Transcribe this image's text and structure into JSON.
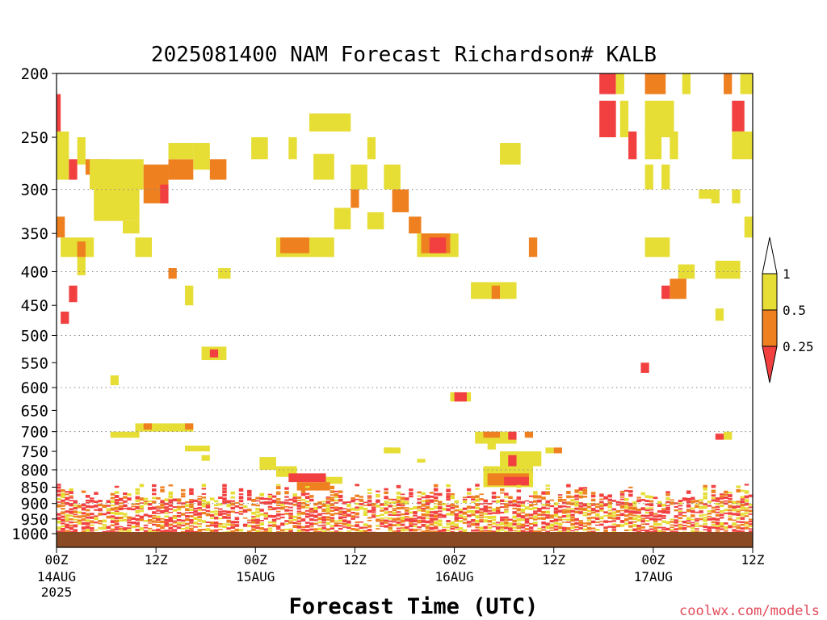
{
  "chart_data": {
    "type": "heatmap",
    "title": "2025081400 NAM Forecast Richardson# KALB",
    "xlabel": "Forecast Time (UTC)",
    "ylabel": "",
    "credit": "coolwx.com/models",
    "y_axis": {
      "scale": "log-pressure",
      "units": "hPa",
      "range": [
        1000,
        200
      ],
      "inverted": true,
      "ticks": [
        200,
        250,
        300,
        350,
        400,
        450,
        500,
        550,
        600,
        650,
        700,
        750,
        800,
        850,
        900,
        950,
        1000
      ],
      "gridlines": [
        300,
        400,
        500,
        600,
        700,
        800,
        900
      ]
    },
    "x_axis": {
      "range_hours": [
        0,
        84
      ],
      "ticks": [
        {
          "hour": 0,
          "label": "00Z",
          "date": "14AUG",
          "year": "2025"
        },
        {
          "hour": 12,
          "label": "12Z"
        },
        {
          "hour": 24,
          "label": "00Z",
          "date": "15AUG"
        },
        {
          "hour": 36,
          "label": "12Z"
        },
        {
          "hour": 48,
          "label": "00Z",
          "date": "16AUG"
        },
        {
          "hour": 60,
          "label": "12Z"
        },
        {
          "hour": 72,
          "label": "00Z",
          "date": "17AUG"
        },
        {
          "hour": 84,
          "label": "12Z"
        }
      ]
    },
    "ground_color": "#8a4a24",
    "colorbar": {
      "labels": [
        "1",
        "0.5",
        "0.25"
      ],
      "levels": [
        {
          "range": "0.5–1",
          "color": "#e6dd35"
        },
        {
          "range": "0.25–0.5",
          "color": "#ee8020"
        },
        {
          "range": "<0.25",
          "color": "#f24040"
        }
      ]
    },
    "cells": [
      {
        "t0": 0,
        "t1": 0.5,
        "p0": 215,
        "p1": 245,
        "c": "r"
      },
      {
        "t0": 0,
        "t1": 1.5,
        "p0": 245,
        "p1": 290,
        "c": "y"
      },
      {
        "t0": 1.5,
        "t1": 2.5,
        "p0": 270,
        "p1": 290,
        "c": "r"
      },
      {
        "t0": 2.5,
        "t1": 3.5,
        "p0": 250,
        "p1": 275,
        "c": "y"
      },
      {
        "t0": 3.5,
        "t1": 6.5,
        "p0": 270,
        "p1": 285,
        "c": "o"
      },
      {
        "t0": 4,
        "t1": 10.5,
        "p0": 270,
        "p1": 300,
        "c": "y"
      },
      {
        "t0": 4.5,
        "t1": 10,
        "p0": 300,
        "p1": 335,
        "c": "y"
      },
      {
        "t0": 8,
        "t1": 10,
        "p0": 335,
        "p1": 350,
        "c": "y"
      },
      {
        "t0": 10.5,
        "t1": 13.5,
        "p0": 275,
        "p1": 315,
        "c": "o"
      },
      {
        "t0": 12.5,
        "t1": 13.5,
        "p0": 295,
        "p1": 315,
        "c": "r"
      },
      {
        "t0": 13.5,
        "t1": 16.5,
        "p0": 270,
        "p1": 290,
        "c": "o"
      },
      {
        "t0": 13.5,
        "t1": 16.5,
        "p0": 255,
        "p1": 270,
        "c": "y"
      },
      {
        "t0": 16.5,
        "t1": 18.5,
        "p0": 255,
        "p1": 280,
        "c": "y"
      },
      {
        "t0": 18.5,
        "t1": 20.5,
        "p0": 270,
        "p1": 290,
        "c": "o"
      },
      {
        "t0": 0,
        "t1": 1,
        "p0": 330,
        "p1": 355,
        "c": "o"
      },
      {
        "t0": 0.5,
        "t1": 4.5,
        "p0": 355,
        "p1": 380,
        "c": "y"
      },
      {
        "t0": 2.5,
        "t1": 3.5,
        "p0": 360,
        "p1": 380,
        "c": "o"
      },
      {
        "t0": 2.5,
        "t1": 3.5,
        "p0": 380,
        "p1": 405,
        "c": "y"
      },
      {
        "t0": 9.5,
        "t1": 11.5,
        "p0": 355,
        "p1": 380,
        "c": "y"
      },
      {
        "t0": 13.5,
        "t1": 14.5,
        "p0": 395,
        "p1": 410,
        "c": "o"
      },
      {
        "t0": 1.5,
        "t1": 2.5,
        "p0": 420,
        "p1": 445,
        "c": "r"
      },
      {
        "t0": 0.5,
        "t1": 1.5,
        "p0": 460,
        "p1": 480,
        "c": "r"
      },
      {
        "t0": 15.5,
        "t1": 16.5,
        "p0": 420,
        "p1": 450,
        "c": "y"
      },
      {
        "t0": 19.5,
        "t1": 21,
        "p0": 395,
        "p1": 410,
        "c": "y"
      },
      {
        "t0": 17.5,
        "t1": 20.5,
        "p0": 520,
        "p1": 545,
        "c": "y"
      },
      {
        "t0": 18.5,
        "t1": 19.5,
        "p0": 525,
        "p1": 540,
        "c": "r"
      },
      {
        "t0": 6.5,
        "t1": 7.5,
        "p0": 575,
        "p1": 595,
        "c": "y"
      },
      {
        "t0": 23.5,
        "t1": 25.5,
        "p0": 250,
        "p1": 270,
        "c": "y"
      },
      {
        "t0": 28,
        "t1": 29,
        "p0": 250,
        "p1": 270,
        "c": "y"
      },
      {
        "t0": 30.5,
        "t1": 35.5,
        "p0": 230,
        "p1": 245,
        "c": "y"
      },
      {
        "t0": 31,
        "t1": 33.5,
        "p0": 265,
        "p1": 290,
        "c": "y"
      },
      {
        "t0": 37.5,
        "t1": 38.5,
        "p0": 250,
        "p1": 270,
        "c": "y"
      },
      {
        "t0": 35.5,
        "t1": 37.5,
        "p0": 275,
        "p1": 300,
        "c": "y"
      },
      {
        "t0": 35.5,
        "t1": 36.5,
        "p0": 300,
        "p1": 320,
        "c": "o"
      },
      {
        "t0": 33.5,
        "t1": 35.5,
        "p0": 320,
        "p1": 345,
        "c": "y"
      },
      {
        "t0": 37.5,
        "t1": 39.5,
        "p0": 325,
        "p1": 345,
        "c": "y"
      },
      {
        "t0": 39.5,
        "t1": 41.5,
        "p0": 275,
        "p1": 300,
        "c": "y"
      },
      {
        "t0": 40.5,
        "t1": 42.5,
        "p0": 300,
        "p1": 325,
        "c": "o"
      },
      {
        "t0": 42.5,
        "t1": 44,
        "p0": 330,
        "p1": 350,
        "c": "o"
      },
      {
        "t0": 43.5,
        "t1": 48.5,
        "p0": 350,
        "p1": 380,
        "c": "y"
      },
      {
        "t0": 44,
        "t1": 47.5,
        "p0": 350,
        "p1": 375,
        "c": "o"
      },
      {
        "t0": 45,
        "t1": 47,
        "p0": 355,
        "p1": 375,
        "c": "r"
      },
      {
        "t0": 26.5,
        "t1": 33.5,
        "p0": 355,
        "p1": 380,
        "c": "y"
      },
      {
        "t0": 27,
        "t1": 30.5,
        "p0": 355,
        "p1": 375,
        "c": "o"
      },
      {
        "t0": 53.5,
        "t1": 56,
        "p0": 255,
        "p1": 275,
        "c": "y"
      },
      {
        "t0": 57,
        "t1": 58,
        "p0": 355,
        "p1": 380,
        "c": "o"
      },
      {
        "t0": 50,
        "t1": 55.5,
        "p0": 415,
        "p1": 440,
        "c": "y"
      },
      {
        "t0": 52.5,
        "t1": 53.5,
        "p0": 420,
        "p1": 440,
        "c": "o"
      },
      {
        "t0": 47.5,
        "t1": 50,
        "p0": 610,
        "p1": 630,
        "c": "y"
      },
      {
        "t0": 48,
        "t1": 49.5,
        "p0": 610,
        "p1": 630,
        "c": "r"
      },
      {
        "t0": 65.5,
        "t1": 67.5,
        "p0": 200,
        "p1": 215,
        "c": "r"
      },
      {
        "t0": 67.5,
        "t1": 68.5,
        "p0": 200,
        "p1": 215,
        "c": "y"
      },
      {
        "t0": 65.5,
        "t1": 67.5,
        "p0": 220,
        "p1": 250,
        "c": "r"
      },
      {
        "t0": 68,
        "t1": 69,
        "p0": 220,
        "p1": 250,
        "c": "y"
      },
      {
        "t0": 69,
        "t1": 70,
        "p0": 245,
        "p1": 270,
        "c": "r"
      },
      {
        "t0": 71,
        "t1": 73.5,
        "p0": 200,
        "p1": 215,
        "c": "o"
      },
      {
        "t0": 71,
        "t1": 74.5,
        "p0": 220,
        "p1": 250,
        "c": "y"
      },
      {
        "t0": 71,
        "t1": 73,
        "p0": 245,
        "p1": 270,
        "c": "y"
      },
      {
        "t0": 74,
        "t1": 75,
        "p0": 245,
        "p1": 270,
        "c": "y"
      },
      {
        "t0": 75.5,
        "t1": 76.5,
        "p0": 200,
        "p1": 215,
        "c": "y"
      },
      {
        "t0": 80.5,
        "t1": 81.5,
        "p0": 200,
        "p1": 215,
        "c": "o"
      },
      {
        "t0": 82.5,
        "t1": 84,
        "p0": 200,
        "p1": 215,
        "c": "y"
      },
      {
        "t0": 81.5,
        "t1": 83,
        "p0": 220,
        "p1": 245,
        "c": "r"
      },
      {
        "t0": 81.5,
        "t1": 84,
        "p0": 245,
        "p1": 270,
        "c": "y"
      },
      {
        "t0": 71,
        "t1": 72,
        "p0": 275,
        "p1": 300,
        "c": "y"
      },
      {
        "t0": 73,
        "t1": 74,
        "p0": 275,
        "p1": 300,
        "c": "y"
      },
      {
        "t0": 77.5,
        "t1": 79.5,
        "p0": 300,
        "p1": 310,
        "c": "y"
      },
      {
        "t0": 79,
        "t1": 80,
        "p0": 300,
        "p1": 315,
        "c": "y"
      },
      {
        "t0": 81.5,
        "t1": 82.5,
        "p0": 300,
        "p1": 315,
        "c": "y"
      },
      {
        "t0": 83,
        "t1": 84,
        "p0": 330,
        "p1": 355,
        "c": "y"
      },
      {
        "t0": 71,
        "t1": 74,
        "p0": 355,
        "p1": 380,
        "c": "y"
      },
      {
        "t0": 75,
        "t1": 77,
        "p0": 390,
        "p1": 410,
        "c": "y"
      },
      {
        "t0": 74,
        "t1": 76,
        "p0": 410,
        "p1": 440,
        "c": "o"
      },
      {
        "t0": 73,
        "t1": 74,
        "p0": 420,
        "p1": 440,
        "c": "r"
      },
      {
        "t0": 79.5,
        "t1": 82.5,
        "p0": 385,
        "p1": 410,
        "c": "y"
      },
      {
        "t0": 79.5,
        "t1": 80.5,
        "p0": 455,
        "p1": 475,
        "c": "y"
      },
      {
        "t0": 70.5,
        "t1": 71.5,
        "p0": 550,
        "p1": 570,
        "c": "r"
      },
      {
        "t0": 6.5,
        "t1": 10,
        "p0": 700,
        "p1": 715,
        "c": "y"
      },
      {
        "t0": 9.5,
        "t1": 16.5,
        "p0": 680,
        "p1": 700,
        "c": "y"
      },
      {
        "t0": 10.5,
        "t1": 11.5,
        "p0": 680,
        "p1": 695,
        "c": "o"
      },
      {
        "t0": 15.5,
        "t1": 16.5,
        "p0": 680,
        "p1": 695,
        "c": "o"
      },
      {
        "t0": 15.5,
        "t1": 18.5,
        "p0": 735,
        "p1": 750,
        "c": "y"
      },
      {
        "t0": 17.5,
        "t1": 18.5,
        "p0": 760,
        "p1": 775,
        "c": "y"
      },
      {
        "t0": 24.5,
        "t1": 26.5,
        "p0": 765,
        "p1": 800,
        "c": "y"
      },
      {
        "t0": 26.5,
        "t1": 29,
        "p0": 790,
        "p1": 820,
        "c": "y"
      },
      {
        "t0": 28,
        "t1": 32.5,
        "p0": 810,
        "p1": 835,
        "c": "r"
      },
      {
        "t0": 32.5,
        "t1": 34.5,
        "p0": 820,
        "p1": 840,
        "c": "y"
      },
      {
        "t0": 29,
        "t1": 33,
        "p0": 835,
        "p1": 860,
        "c": "o"
      },
      {
        "t0": 39.5,
        "t1": 41.5,
        "p0": 740,
        "p1": 755,
        "c": "y"
      },
      {
        "t0": 43.5,
        "t1": 44.5,
        "p0": 770,
        "p1": 780,
        "c": "y"
      },
      {
        "t0": 39.5,
        "t1": 40.5,
        "p0": 740,
        "p1": 755,
        "c": "y"
      },
      {
        "t0": 50.5,
        "t1": 55.5,
        "p0": 700,
        "p1": 730,
        "c": "y"
      },
      {
        "t0": 51.5,
        "t1": 53.5,
        "p0": 700,
        "p1": 715,
        "c": "o"
      },
      {
        "t0": 54.5,
        "t1": 55.5,
        "p0": 700,
        "p1": 720,
        "c": "r"
      },
      {
        "t0": 56.5,
        "t1": 57.5,
        "p0": 700,
        "p1": 715,
        "c": "o"
      },
      {
        "t0": 52,
        "t1": 53,
        "p0": 730,
        "p1": 745,
        "c": "y"
      },
      {
        "t0": 53.5,
        "t1": 58.5,
        "p0": 750,
        "p1": 790,
        "c": "y"
      },
      {
        "t0": 54.5,
        "t1": 55.5,
        "p0": 760,
        "p1": 800,
        "c": "r"
      },
      {
        "t0": 59,
        "t1": 60,
        "p0": 740,
        "p1": 755,
        "c": "y"
      },
      {
        "t0": 60,
        "t1": 61,
        "p0": 740,
        "p1": 755,
        "c": "o"
      },
      {
        "t0": 51.5,
        "t1": 57.5,
        "p0": 790,
        "p1": 850,
        "c": "y"
      },
      {
        "t0": 52,
        "t1": 57,
        "p0": 810,
        "p1": 845,
        "c": "o"
      },
      {
        "t0": 54,
        "t1": 57,
        "p0": 820,
        "p1": 845,
        "c": "r"
      },
      {
        "t0": 80.5,
        "t1": 81.5,
        "p0": 700,
        "p1": 720,
        "c": "y"
      },
      {
        "t0": 79.5,
        "t1": 80.5,
        "p0": 705,
        "p1": 720,
        "c": "r"
      }
    ],
    "boundary_layer": {
      "p_top": 840,
      "p_bottom": 995
    }
  }
}
